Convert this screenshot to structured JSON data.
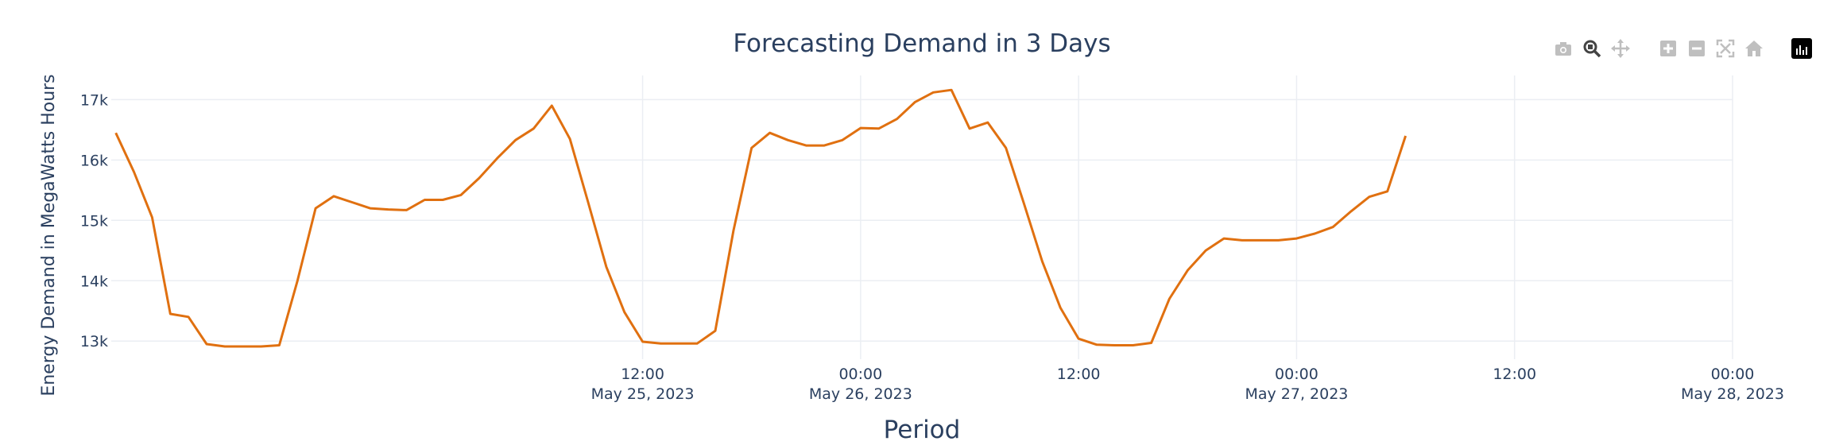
{
  "chart_data": {
    "type": "line",
    "title": "Forecasting Demand in 3 Days",
    "xlabel": "Period",
    "ylabel": "Energy Demand in MegaWatts Hours",
    "x_start": "2023-05-24 07:00",
    "x_step_hours": 1,
    "xlim": [
      "2023-05-24 06:45",
      "2023-05-28 00:00"
    ],
    "ylim": [
      12700,
      17400
    ],
    "x_ticks": [
      {
        "at": "2023-05-25 12:00",
        "label": "12:00",
        "sublabel": "May 25, 2023"
      },
      {
        "at": "2023-05-26 00:00",
        "label": "00:00",
        "sublabel": "May 26, 2023"
      },
      {
        "at": "2023-05-26 12:00",
        "label": "12:00",
        "sublabel": ""
      },
      {
        "at": "2023-05-27 00:00",
        "label": "00:00",
        "sublabel": "May 27, 2023"
      },
      {
        "at": "2023-05-27 12:00",
        "label": "12:00",
        "sublabel": ""
      },
      {
        "at": "2023-05-28 00:00",
        "label": "00:00",
        "sublabel": "May 28, 2023"
      }
    ],
    "y_ticks": [
      {
        "value": 13000,
        "label": "13k"
      },
      {
        "value": 14000,
        "label": "14k"
      },
      {
        "value": 15000,
        "label": "15k"
      },
      {
        "value": 16000,
        "label": "16k"
      },
      {
        "value": 17000,
        "label": "17k"
      }
    ],
    "grid": true,
    "line_color": "#e07010",
    "series": [
      {
        "values": [
          16450,
          15800,
          15050,
          13450,
          13400,
          12950,
          12910,
          12910,
          12910,
          12930,
          14000,
          15200,
          15400,
          15300,
          15200,
          15180,
          15170,
          15340,
          15340,
          15420,
          15700,
          16030,
          16330,
          16520,
          16900,
          16350,
          15300,
          14230,
          13480,
          12990,
          12960,
          12960,
          12960,
          13170,
          14830,
          16200,
          16450,
          16330,
          16240,
          16240,
          16330,
          16530,
          16520,
          16680,
          16960,
          17120,
          17160,
          16520,
          16620,
          16200,
          15270,
          14320,
          13550,
          13040,
          12940,
          12930,
          12930,
          12970,
          13700,
          14170,
          14500,
          14700,
          14670,
          14670,
          14670,
          14700,
          14780,
          14890,
          15150,
          15390,
          15480,
          16400
        ]
      }
    ]
  },
  "modebar": {
    "icons": [
      "camera-icon",
      "zoom-icon",
      "pan-icon",
      "zoom-in-icon",
      "zoom-out-icon",
      "autoscale-icon",
      "reset-axes-icon",
      "plotly-logo-icon"
    ],
    "active_color": "#444444",
    "inactive_color": "#bfbfbf"
  }
}
